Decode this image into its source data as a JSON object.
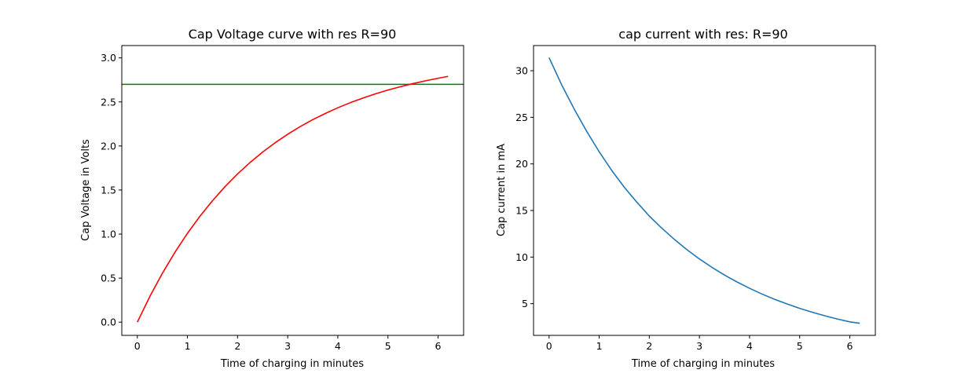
{
  "chart_data": [
    {
      "type": "line",
      "title": "Cap Voltage curve with res R=90",
      "xlabel": "Time of charging in minutes",
      "ylabel": "Cap Voltage in Volts",
      "xlim": [
        -0.31,
        6.51
      ],
      "ylim": [
        -0.15,
        3.14
      ],
      "xticks": [
        0,
        1,
        2,
        3,
        4,
        5,
        6
      ],
      "yticks": [
        0.0,
        0.5,
        1.0,
        1.5,
        2.0,
        2.5,
        3.0
      ],
      "xtick_labels": [
        "0",
        "1",
        "2",
        "3",
        "4",
        "5",
        "6"
      ],
      "ytick_labels": [
        "0.0",
        "0.5",
        "1.0",
        "1.5",
        "2.0",
        "2.5",
        "3.0"
      ],
      "grid": false,
      "series": [
        {
          "color": "#ff0000",
          "x": [
            0,
            0.25,
            0.5,
            0.75,
            1,
            1.25,
            1.5,
            1.75,
            2,
            2.25,
            2.5,
            2.75,
            3,
            3.25,
            3.5,
            3.75,
            4,
            4.25,
            4.5,
            4.75,
            5,
            5.25,
            5.5,
            5.75,
            6,
            6.2
          ],
          "y": [
            0,
            0.292,
            0.555,
            0.793,
            1.008,
            1.203,
            1.379,
            1.539,
            1.683,
            1.813,
            1.931,
            2.037,
            2.133,
            2.22,
            2.299,
            2.369,
            2.434,
            2.492,
            2.544,
            2.592,
            2.635,
            2.673,
            2.708,
            2.74,
            2.769,
            2.79
          ]
        }
      ],
      "hlines": [
        {
          "y": 2.7,
          "color": "#008000"
        }
      ]
    },
    {
      "type": "line",
      "title": "cap current with res: R=90",
      "xlabel": "Time of charging in minutes",
      "ylabel": "Cap current in mA",
      "xlim": [
        -0.31,
        6.51
      ],
      "ylim": [
        1.6,
        32.7
      ],
      "xticks": [
        0,
        1,
        2,
        3,
        4,
        5,
        6
      ],
      "yticks": [
        5,
        10,
        15,
        20,
        25,
        30
      ],
      "xtick_labels": [
        "0",
        "1",
        "2",
        "3",
        "4",
        "5",
        "6"
      ],
      "ytick_labels": [
        "5",
        "10",
        "15",
        "20",
        "25",
        "30"
      ],
      "grid": false,
      "series": [
        {
          "color": "#1f77b4",
          "x": [
            0,
            0.25,
            0.5,
            0.75,
            1,
            1.25,
            1.5,
            1.75,
            2,
            2.25,
            2.5,
            2.75,
            3,
            3.25,
            3.5,
            3.75,
            4,
            4.25,
            4.5,
            4.75,
            5,
            5.25,
            5.5,
            5.75,
            6,
            6.2
          ],
          "y": [
            31.4,
            28.5,
            25.9,
            23.5,
            21.3,
            19.3,
            17.5,
            15.9,
            14.4,
            13.1,
            11.9,
            10.8,
            9.8,
            8.9,
            8.07,
            7.33,
            6.65,
            6.03,
            5.47,
            4.97,
            4.5,
            4.09,
            3.71,
            3.36,
            3.05,
            2.9
          ]
        }
      ]
    }
  ]
}
